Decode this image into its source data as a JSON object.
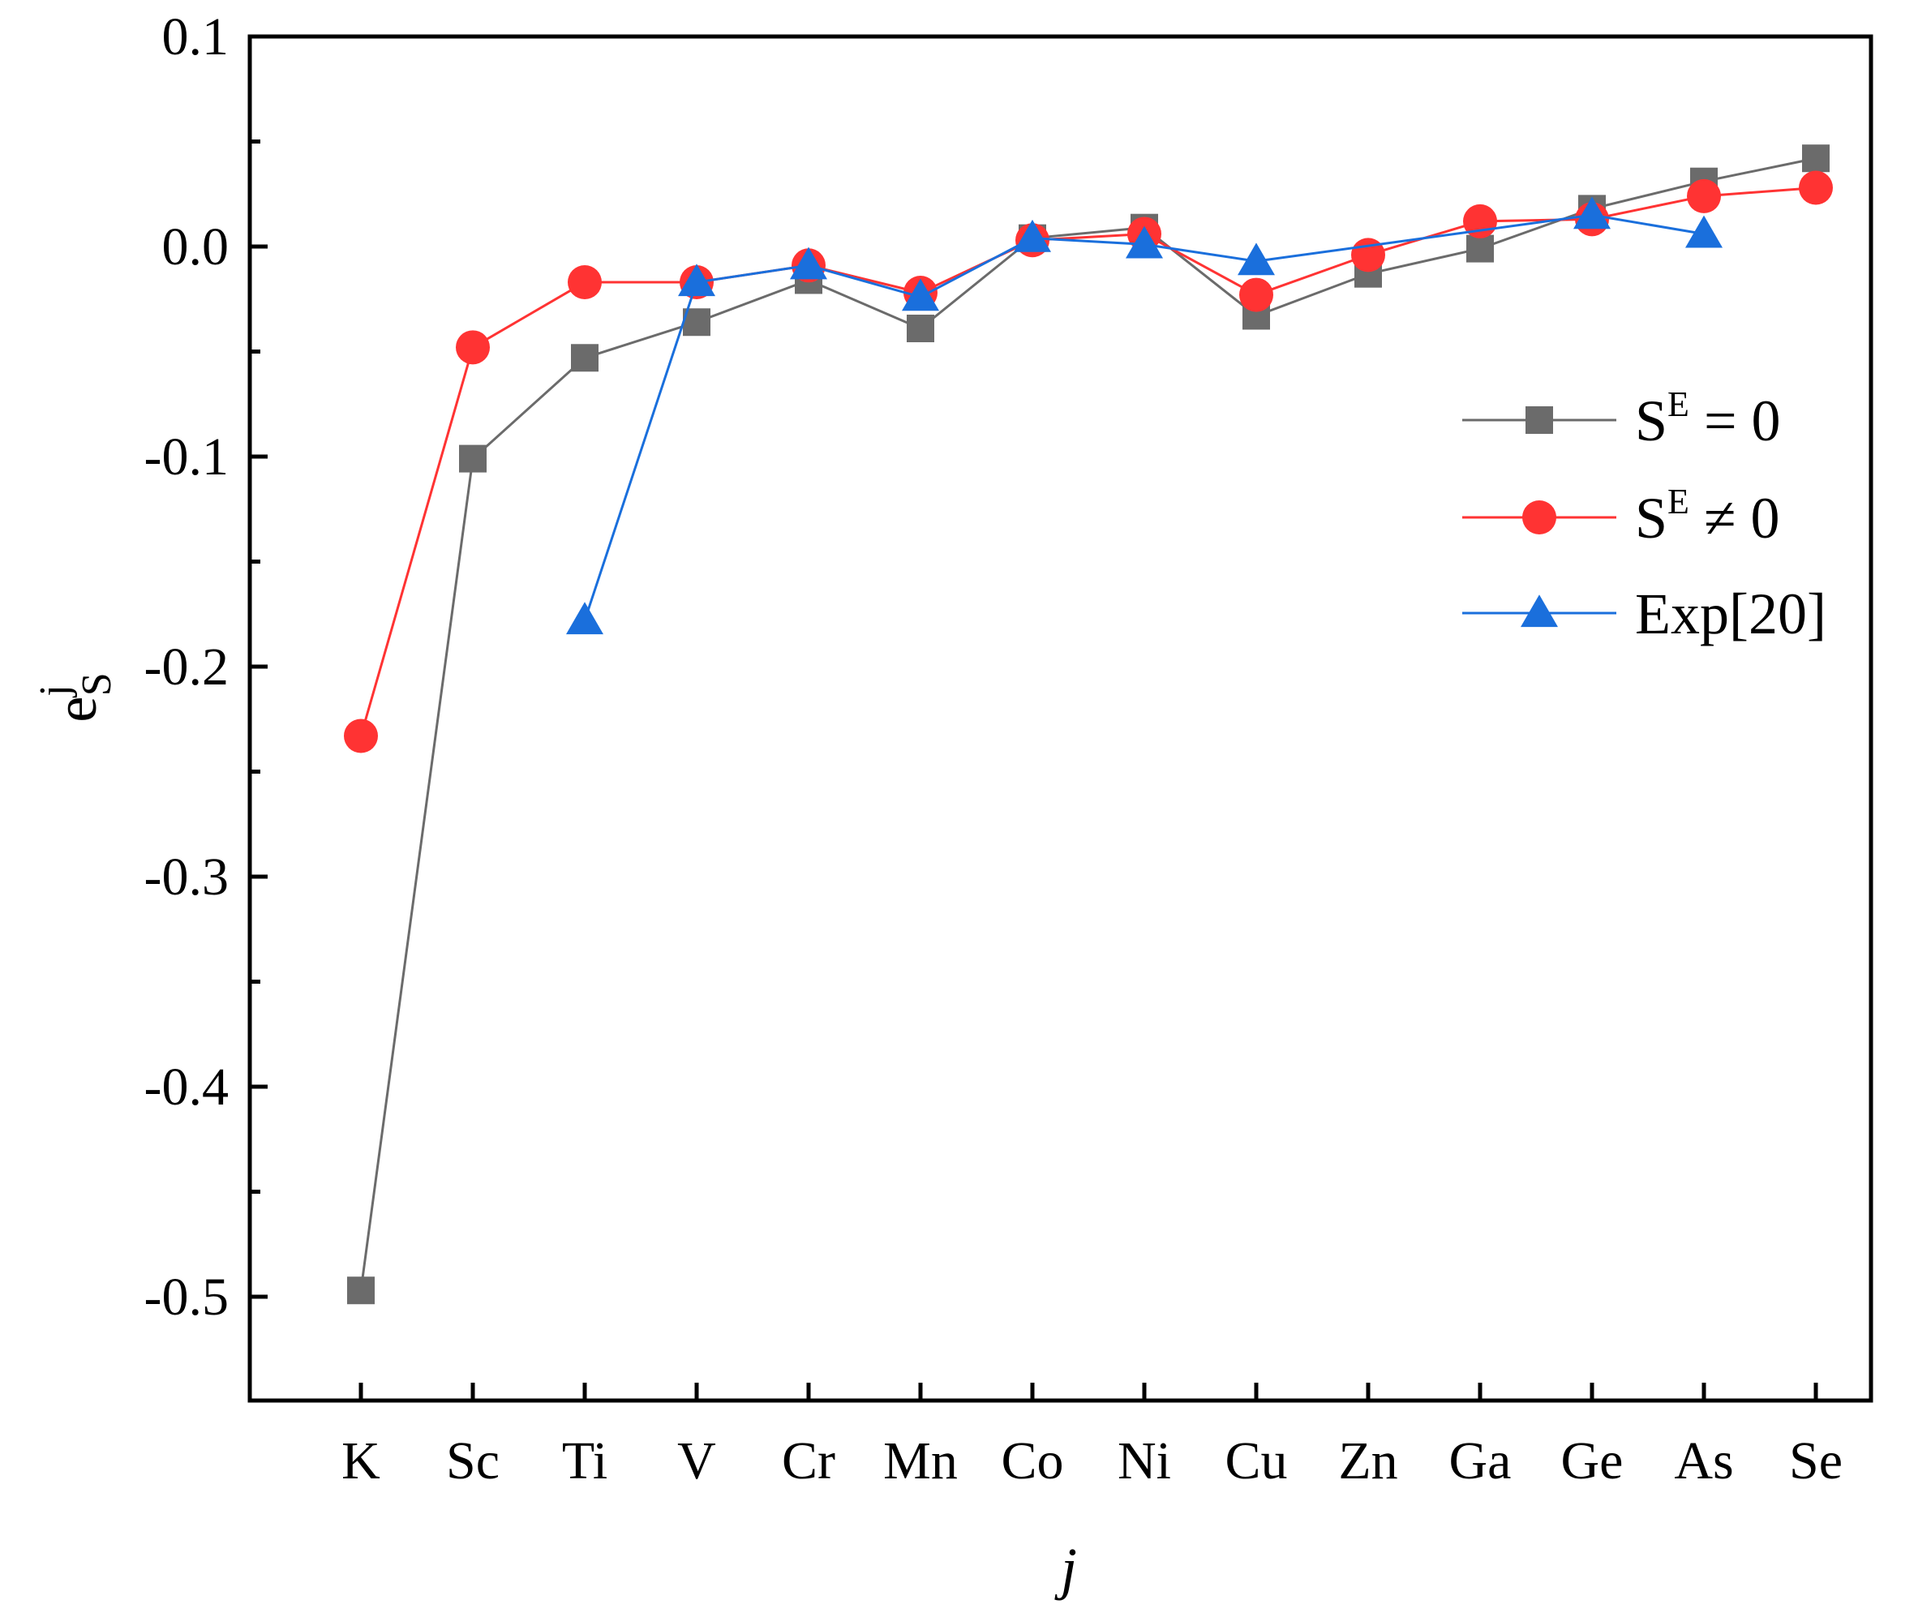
{
  "chart_data": {
    "type": "line",
    "categories": [
      "K",
      "Sc",
      "Ti",
      "V",
      "Cr",
      "Mn",
      "Co",
      "Ni",
      "Cu",
      "Zn",
      "Ga",
      "Ge",
      "As",
      "Se"
    ],
    "xlabel": "j",
    "ylabel": {
      "base": "e",
      "sup": "j",
      "sub": "S"
    },
    "ylim": [
      -0.55,
      0.1
    ],
    "yticks": [
      0.1,
      0.0,
      -0.1,
      -0.2,
      -0.3,
      -0.4,
      -0.5
    ],
    "ytick_labels": [
      "0.1",
      "0.0",
      "-0.1",
      "-0.2",
      "-0.3",
      "-0.4",
      "-0.5"
    ],
    "legend_position": "right",
    "series": [
      {
        "name": "S^E = 0",
        "legend": {
          "base": "S",
          "sup": "E",
          "rest": " = 0"
        },
        "marker": "square",
        "color": "#6b6b6b",
        "values": [
          -0.497,
          -0.101,
          -0.053,
          -0.036,
          -0.016,
          -0.039,
          0.004,
          0.009,
          -0.033,
          -0.013,
          -0.001,
          0.018,
          0.031,
          0.042
        ]
      },
      {
        "name": "S^E ≠ 0",
        "legend": {
          "base": "S",
          "sup": "E",
          "rest": " ≠ 0"
        },
        "marker": "circle",
        "color": "#ff3333",
        "values": [
          -0.233,
          -0.048,
          -0.017,
          -0.017,
          -0.009,
          -0.022,
          0.003,
          0.006,
          -0.023,
          -0.004,
          0.012,
          0.013,
          0.024,
          0.028
        ]
      },
      {
        "name": "Exp[20]",
        "legend": {
          "base": "Exp[20]",
          "sup": "",
          "rest": ""
        },
        "marker": "triangle",
        "color": "#1a6fdc",
        "values": [
          null,
          null,
          -0.178,
          -0.017,
          -0.009,
          -0.024,
          0.004,
          0.001,
          -0.007,
          null,
          null,
          0.015,
          0.006,
          null
        ]
      }
    ]
  }
}
